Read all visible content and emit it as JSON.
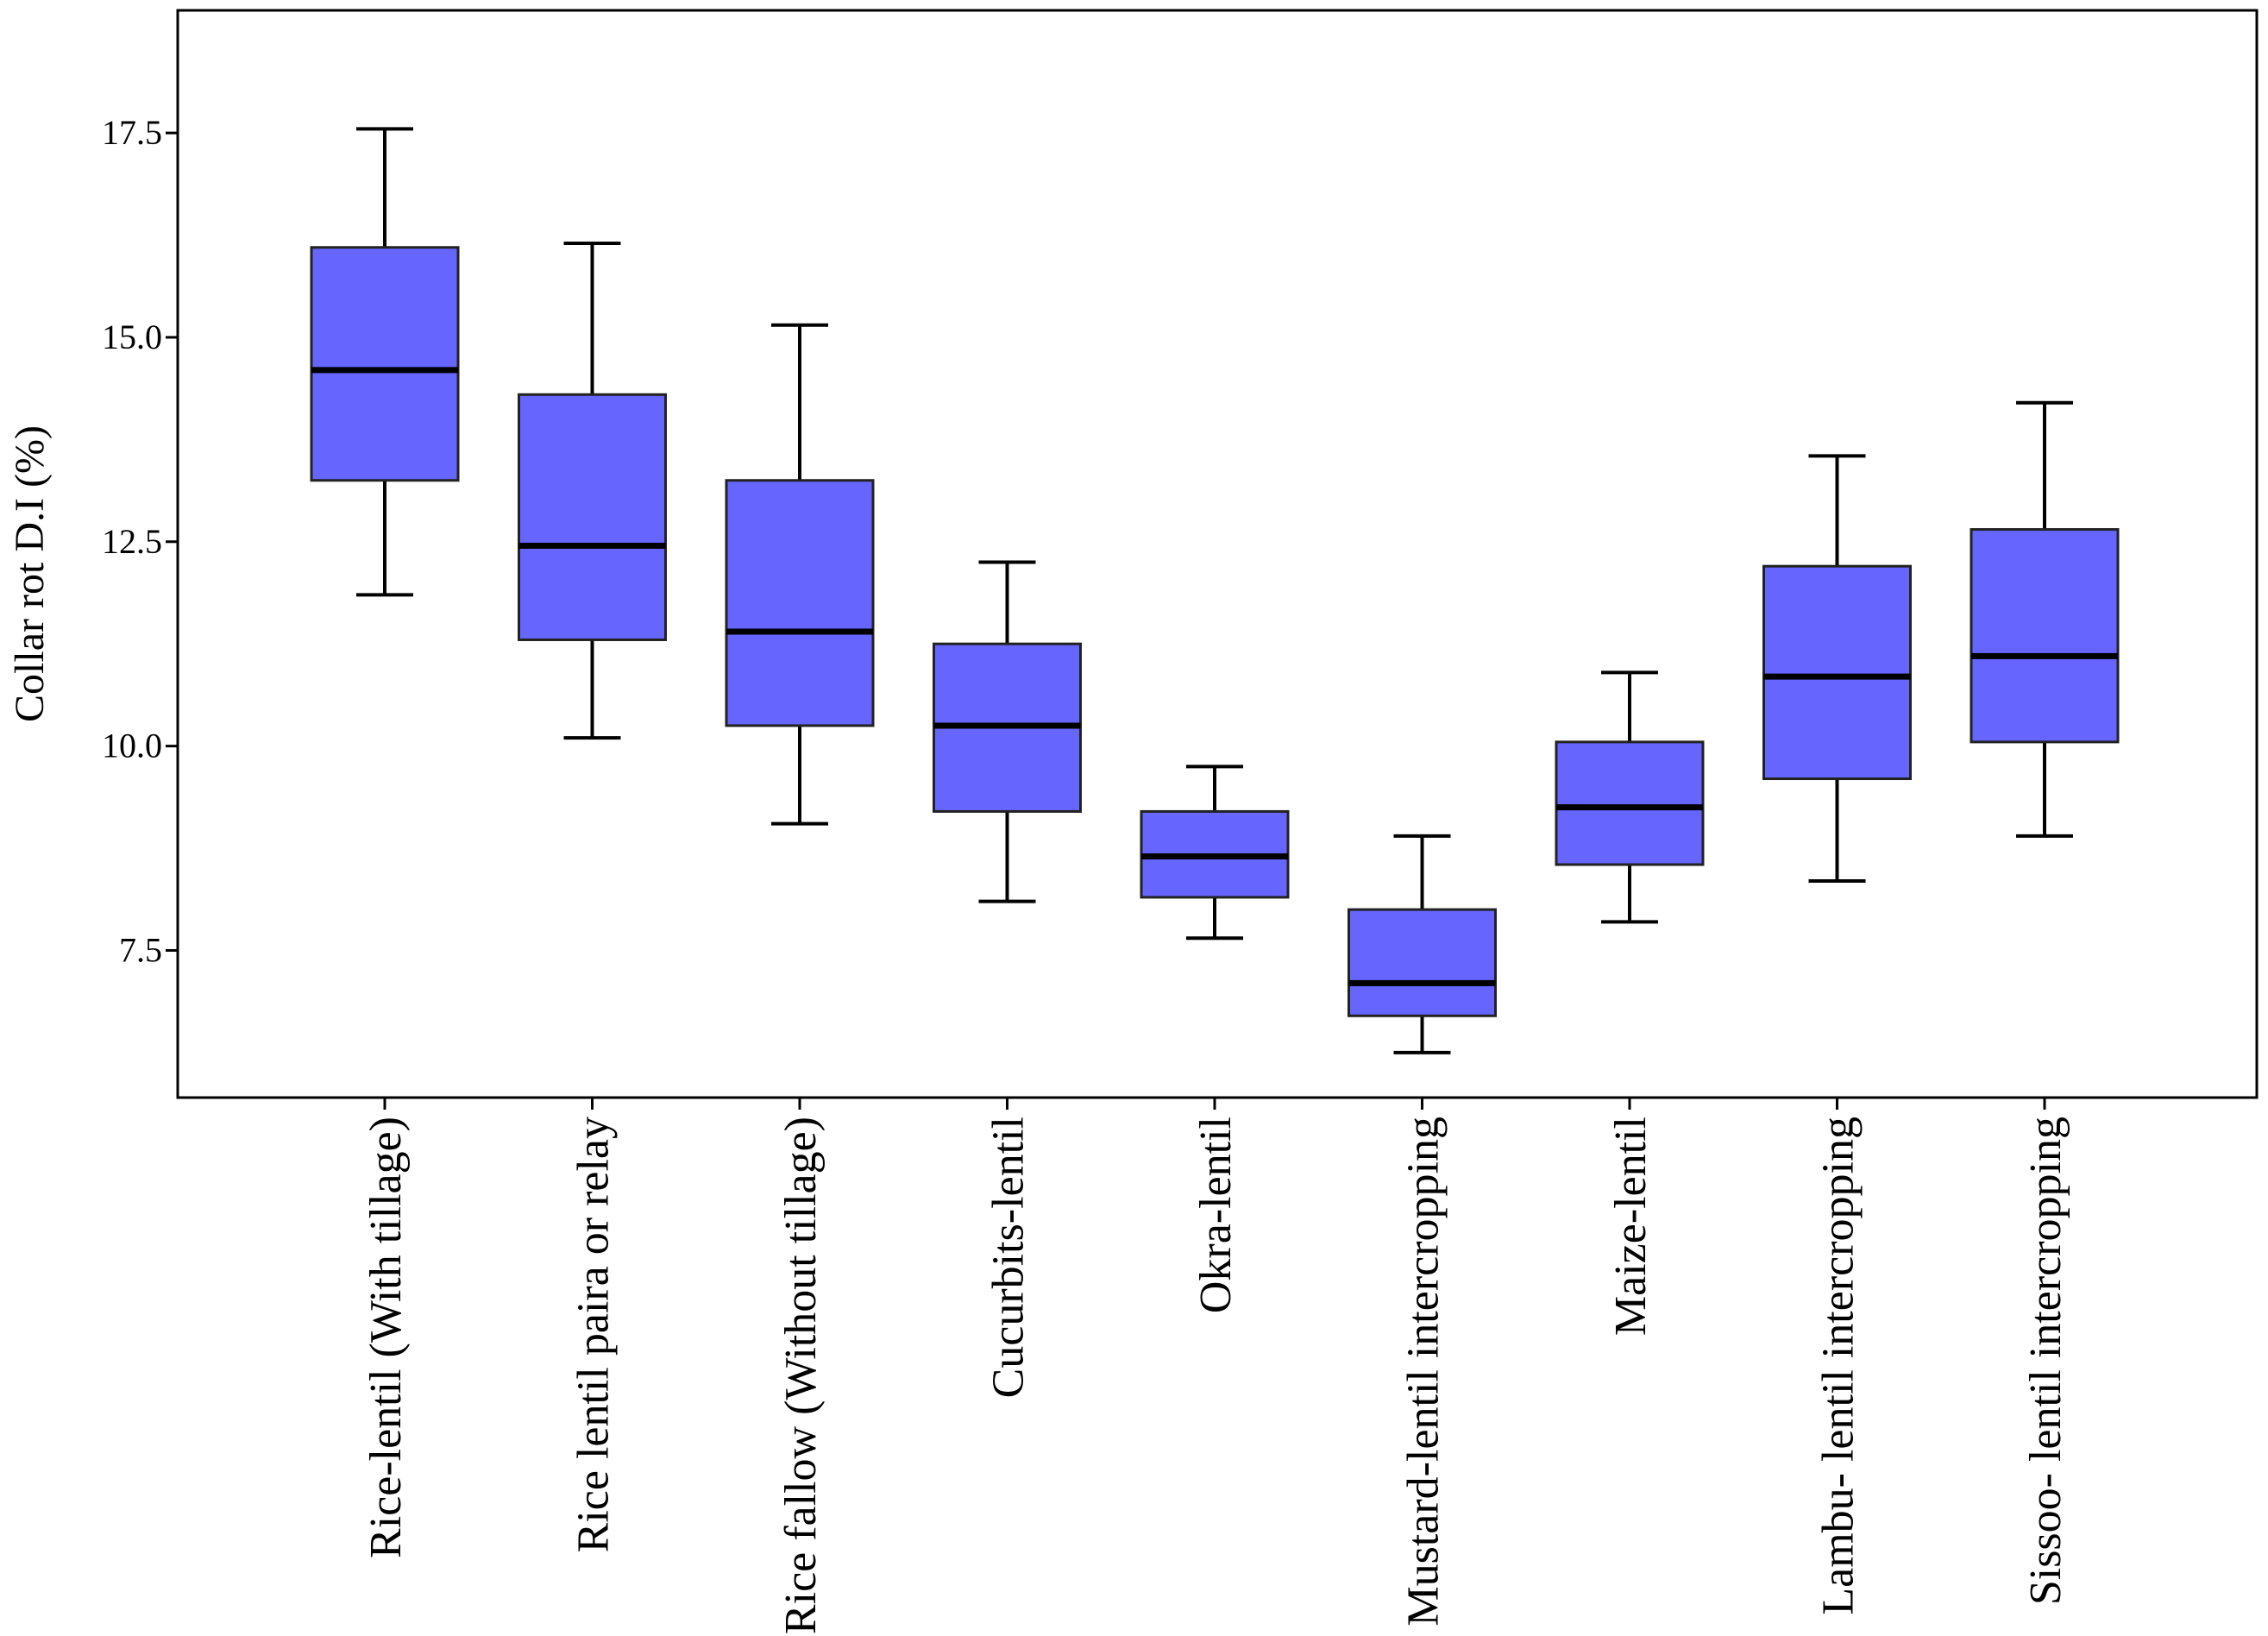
{
  "chart_data": {
    "type": "boxplot",
    "title": "",
    "xlabel": "",
    "ylabel": "Collar rot D.I (%)",
    "ylim": [
      5.7,
      19.0
    ],
    "yticks": [
      7.5,
      10.0,
      12.5,
      15.0,
      17.5
    ],
    "ytick_labels": [
      "7.5",
      "10.0",
      "12.5",
      "15.0",
      "17.5"
    ],
    "grid": false,
    "box_color": "#6666ff",
    "line_color": "#000000",
    "categories": [
      "Rice-lentil (With tillage)",
      "Rice lentil paira or relay",
      "Rice fallow (Without tillage)",
      "Cucurbits-lentil",
      "Okra-lentil",
      "Mustard-lentil intercropping",
      "Maize-lentil",
      "Lambu- lentil  intercropping",
      "Sissoo- lentil  intercropping"
    ],
    "boxes": [
      {
        "whisker_low": 11.85,
        "q1": 13.25,
        "median": 14.6,
        "q3": 16.1,
        "whisker_high": 17.55
      },
      {
        "whisker_low": 10.1,
        "q1": 11.3,
        "median": 12.45,
        "q3": 14.3,
        "whisker_high": 16.15
      },
      {
        "whisker_low": 9.05,
        "q1": 10.25,
        "median": 11.4,
        "q3": 13.25,
        "whisker_high": 15.15
      },
      {
        "whisker_low": 8.1,
        "q1": 9.2,
        "median": 10.25,
        "q3": 11.25,
        "whisker_high": 12.25
      },
      {
        "whisker_low": 7.65,
        "q1": 8.15,
        "median": 8.65,
        "q3": 9.2,
        "whisker_high": 9.75
      },
      {
        "whisker_low": 6.25,
        "q1": 6.7,
        "median": 7.1,
        "q3": 8.0,
        "whisker_high": 8.9
      },
      {
        "whisker_low": 7.85,
        "q1": 8.55,
        "median": 9.25,
        "q3": 10.05,
        "whisker_high": 10.9
      },
      {
        "whisker_low": 8.35,
        "q1": 9.6,
        "median": 10.85,
        "q3": 12.2,
        "whisker_high": 13.55
      },
      {
        "whisker_low": 8.9,
        "q1": 10.05,
        "median": 11.1,
        "q3": 12.65,
        "whisker_high": 14.2
      }
    ]
  }
}
